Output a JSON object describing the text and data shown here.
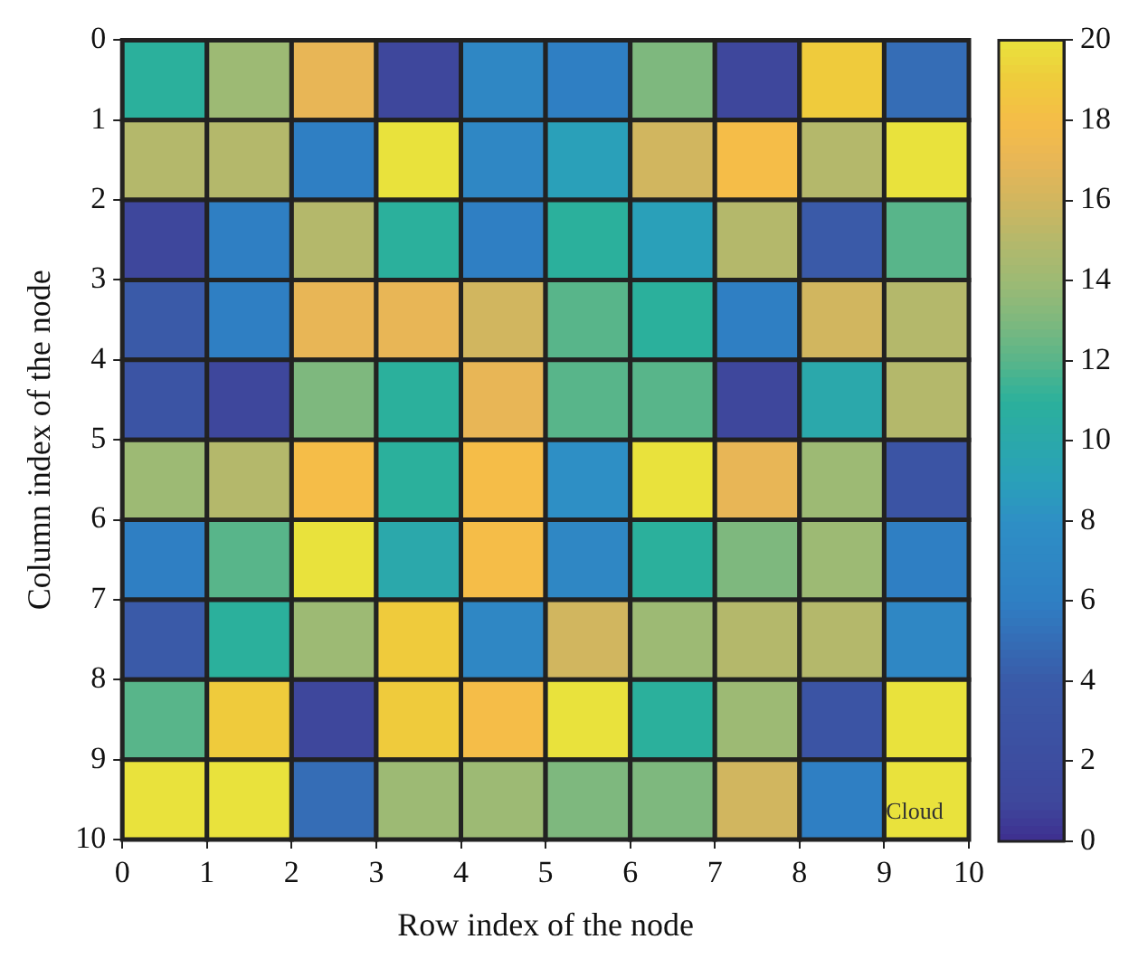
{
  "chart_data": {
    "type": "heatmap",
    "xlabel": "Row index of the node",
    "ylabel": "Column index of the node",
    "xlim": [
      0,
      10
    ],
    "xticks": [
      0,
      1,
      2,
      3,
      4,
      5,
      6,
      7,
      8,
      9,
      10
    ],
    "ylim": [
      10,
      0
    ],
    "yticks": [
      0,
      1,
      2,
      3,
      4,
      5,
      6,
      7,
      8,
      9,
      10
    ],
    "cells": [
      [
        11,
        14,
        17,
        1,
        7,
        6,
        13,
        1,
        19,
        5
      ],
      [
        15,
        15,
        6,
        20,
        7,
        9,
        16,
        18,
        15,
        20
      ],
      [
        1,
        6,
        15,
        11,
        6,
        11,
        9,
        15,
        4,
        12
      ],
      [
        4,
        6,
        17,
        17,
        16,
        12,
        11,
        6,
        16,
        15
      ],
      [
        3,
        1,
        13,
        11,
        17,
        12,
        12,
        1,
        10,
        15
      ],
      [
        14,
        15,
        18,
        11,
        18,
        8,
        20,
        17,
        14,
        3
      ],
      [
        6,
        12,
        20,
        10,
        18,
        7,
        11,
        13,
        14,
        6
      ],
      [
        4,
        11,
        14,
        19,
        7,
        16,
        14,
        15,
        15,
        7
      ],
      [
        12,
        19,
        1,
        19,
        18,
        20,
        11,
        14,
        3,
        20
      ],
      [
        20,
        20,
        5,
        14,
        14,
        13,
        13,
        16,
        6,
        20
      ]
    ],
    "clim": [
      0,
      20
    ],
    "cticks": [
      0,
      2,
      4,
      6,
      8,
      10,
      12,
      14,
      16,
      18,
      20
    ],
    "annotations": [
      "Cloud"
    ]
  }
}
